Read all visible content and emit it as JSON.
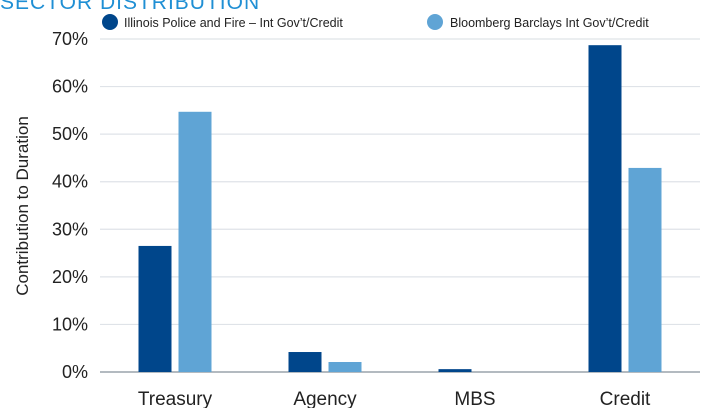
{
  "title": "SECTOR DISTRIBUTION",
  "colors": {
    "series1": "#00468b",
    "series2": "#5fa4d5",
    "grid": "#dfe3e8",
    "axis": "#9aa3ab"
  },
  "chart_data": {
    "type": "bar",
    "title": "SECTOR DISTRIBUTION",
    "categories": [
      "Treasury",
      "Agency",
      "MBS",
      "Credit"
    ],
    "series": [
      {
        "name": "Illinois Police and Fire – Int Gov’t/Credit",
        "values": [
          26.5,
          4.2,
          0.6,
          68.7
        ]
      },
      {
        "name": "Bloomberg Barclays Int Gov’t/Credit",
        "values": [
          54.7,
          2.1,
          0,
          42.9
        ]
      }
    ],
    "ylabel": "Contribution to Duration",
    "xlabel": "",
    "ylim": [
      0,
      70
    ],
    "yticks": [
      0,
      10,
      20,
      30,
      40,
      50,
      60,
      70
    ],
    "ytick_labels": [
      "0%",
      "10%",
      "20%",
      "30%",
      "40%",
      "50%",
      "60%",
      "70%"
    ],
    "grid": true,
    "legend": "top-right"
  }
}
